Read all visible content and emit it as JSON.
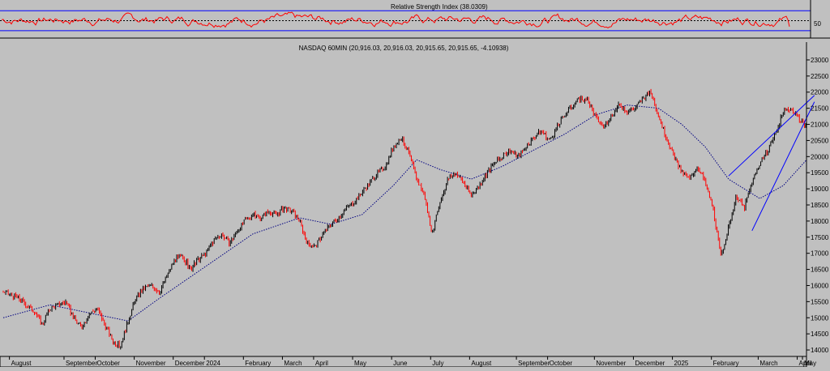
{
  "rsi_panel": {
    "title": "Relative Strength Index (38.0309)",
    "tick_label": "50",
    "colors": {
      "line": "#ff0000",
      "bands": "#0000ff",
      "background": "#c0c0c0"
    }
  },
  "price_panel": {
    "title": "NASDAQ 60MIN (20,916.03, 20,916.03, 20,915.65, 20,915.65, -4.10938)",
    "colors": {
      "up_bar": "#000000",
      "down_bar": "#ff0000",
      "moving_average": "#000080",
      "trendlines": "#0000ff"
    }
  },
  "chart_data": [
    {
      "type": "line",
      "title": "Relative Strength Index (38.0309)",
      "y_ticks": [
        50
      ],
      "y_range": [
        20,
        85
      ],
      "reference_lines": [
        70,
        50,
        30
      ],
      "last_value": 38.0309
    },
    {
      "type": "candlestick",
      "title": "NASDAQ 60MIN (20,916.03, 20,916.03, 20,915.65, 20,915.65, -4.10938)",
      "y_ticks": [
        "14000",
        "14500",
        "15000",
        "15500",
        "16000",
        "16500",
        "17000",
        "17500",
        "18000",
        "18500",
        "19000",
        "19500",
        "20000",
        "20500",
        "21000",
        "21500",
        "22000",
        "22500",
        "23000"
      ],
      "y_range": [
        13800,
        23200
      ],
      "x_labels": [
        "August",
        "September",
        "October",
        "November",
        "December",
        "2024",
        "February",
        "March",
        "April",
        "May",
        "June",
        "July",
        "August",
        "September",
        "October",
        "November",
        "December",
        "2025",
        "February",
        "March",
        "April",
        "May"
      ],
      "x_domain": [
        0,
        100
      ],
      "x_label_positions": [
        1,
        8,
        12,
        17,
        22,
        26,
        31,
        36,
        40,
        45,
        50,
        55,
        60,
        66,
        70,
        76,
        81,
        86,
        91,
        97,
        102,
        108
      ],
      "price_path": [
        [
          0,
          15800
        ],
        [
          2,
          15600
        ],
        [
          4,
          15200
        ],
        [
          5,
          14800
        ],
        [
          6,
          15300
        ],
        [
          8,
          15500
        ],
        [
          9,
          15000
        ],
        [
          10,
          14700
        ],
        [
          11,
          15100
        ],
        [
          12,
          15300
        ],
        [
          13,
          14800
        ],
        [
          14,
          14300
        ],
        [
          15,
          14100
        ],
        [
          16,
          14900
        ],
        [
          17,
          15600
        ],
        [
          18,
          15900
        ],
        [
          19,
          16000
        ],
        [
          20,
          15800
        ],
        [
          21,
          16300
        ],
        [
          22,
          16800
        ],
        [
          23,
          16900
        ],
        [
          24,
          16500
        ],
        [
          25,
          16800
        ],
        [
          26,
          17000
        ],
        [
          27,
          17400
        ],
        [
          28,
          17600
        ],
        [
          29,
          17300
        ],
        [
          30,
          17700
        ],
        [
          31,
          18000
        ],
        [
          32,
          18200
        ],
        [
          33,
          18100
        ],
        [
          34,
          18300
        ],
        [
          35,
          18200
        ],
        [
          36,
          18400
        ],
        [
          37,
          18300
        ],
        [
          38,
          18000
        ],
        [
          39,
          17300
        ],
        [
          40,
          17200
        ],
        [
          41,
          17600
        ],
        [
          42,
          17900
        ],
        [
          43,
          18100
        ],
        [
          44,
          18400
        ],
        [
          45,
          18600
        ],
        [
          46,
          18900
        ],
        [
          47,
          19200
        ],
        [
          48,
          19500
        ],
        [
          49,
          19700
        ],
        [
          50,
          20300
        ],
        [
          51,
          20600
        ],
        [
          52,
          20100
        ],
        [
          53,
          19300
        ],
        [
          54,
          18800
        ],
        [
          55,
          17600
        ],
        [
          56,
          18600
        ],
        [
          57,
          19300
        ],
        [
          58,
          19500
        ],
        [
          59,
          19200
        ],
        [
          60,
          18800
        ],
        [
          61,
          19100
        ],
        [
          62,
          19500
        ],
        [
          63,
          19800
        ],
        [
          64,
          20000
        ],
        [
          65,
          20200
        ],
        [
          66,
          20000
        ],
        [
          67,
          20300
        ],
        [
          68,
          20600
        ],
        [
          69,
          20800
        ],
        [
          70,
          20500
        ],
        [
          71,
          20900
        ],
        [
          72,
          21300
        ],
        [
          73,
          21600
        ],
        [
          74,
          21800
        ],
        [
          75,
          21700
        ],
        [
          76,
          21200
        ],
        [
          77,
          20900
        ],
        [
          78,
          21300
        ],
        [
          79,
          21600
        ],
        [
          80,
          21400
        ],
        [
          81,
          21500
        ],
        [
          82,
          21800
        ],
        [
          83,
          22000
        ],
        [
          84,
          21300
        ],
        [
          85,
          20600
        ],
        [
          86,
          20000
        ],
        [
          87,
          19500
        ],
        [
          88,
          19300
        ],
        [
          89,
          19700
        ],
        [
          90,
          19200
        ],
        [
          91,
          18400
        ],
        [
          92,
          16900
        ],
        [
          93,
          17800
        ],
        [
          94,
          18800
        ],
        [
          95,
          18400
        ],
        [
          96,
          19200
        ],
        [
          97,
          19800
        ],
        [
          98,
          20200
        ],
        [
          99,
          20700
        ],
        [
          100,
          21400
        ],
        [
          101,
          21500
        ],
        [
          102,
          21200
        ],
        [
          103,
          20900
        ]
      ],
      "moving_average": [
        [
          0,
          15000
        ],
        [
          6,
          15400
        ],
        [
          12,
          15100
        ],
        [
          16,
          14900
        ],
        [
          20,
          15600
        ],
        [
          26,
          16600
        ],
        [
          32,
          17600
        ],
        [
          38,
          18100
        ],
        [
          42,
          17900
        ],
        [
          46,
          18200
        ],
        [
          50,
          19100
        ],
        [
          53,
          19900
        ],
        [
          56,
          19600
        ],
        [
          60,
          19300
        ],
        [
          64,
          19700
        ],
        [
          68,
          20200
        ],
        [
          72,
          20700
        ],
        [
          76,
          21300
        ],
        [
          80,
          21600
        ],
        [
          84,
          21500
        ],
        [
          87,
          21000
        ],
        [
          90,
          20300
        ],
        [
          93,
          19300
        ],
        [
          97,
          18700
        ],
        [
          100,
          19100
        ],
        [
          103,
          19900
        ]
      ],
      "trendlines": [
        {
          "from": [
            93,
            19400
          ],
          "to": [
            104,
            21900
          ]
        },
        {
          "from": [
            96,
            17700
          ],
          "to": [
            104,
            21700
          ]
        }
      ]
    }
  ]
}
